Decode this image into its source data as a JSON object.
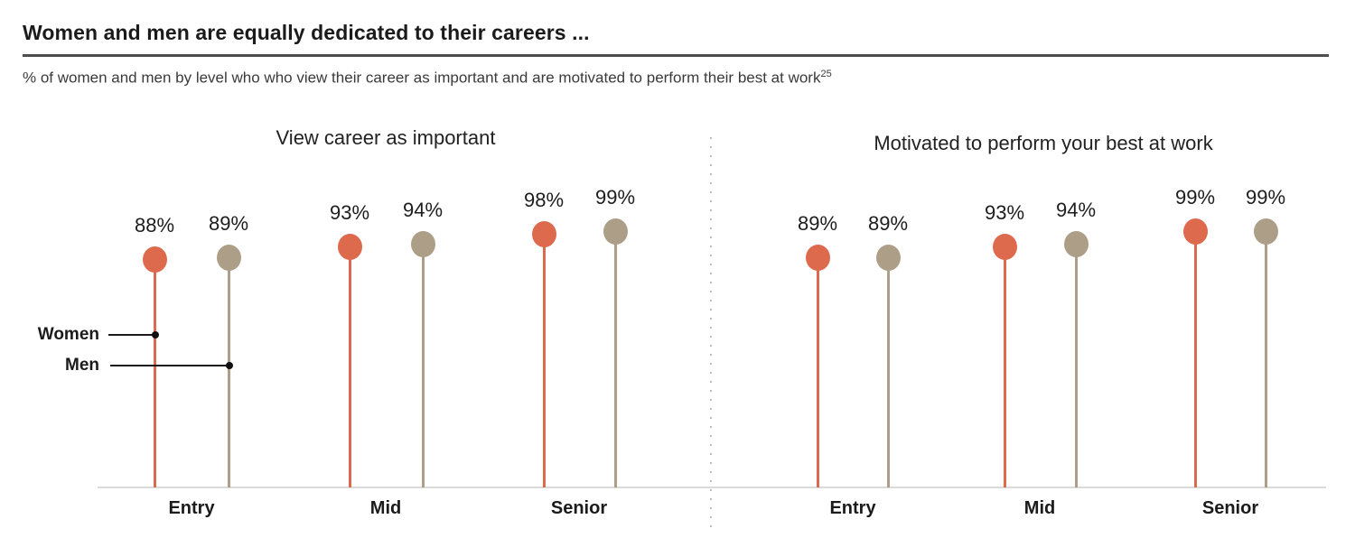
{
  "header": {
    "title": "Women and men are equally dedicated to their careers ...",
    "subtitle": "% of women and men by level who who view their career as important and are motivated to perform their best at work",
    "footnote_marker": "25"
  },
  "legend": {
    "women_label": "Women",
    "men_label": "Men"
  },
  "colors": {
    "women": "#DE6A4D",
    "men": "#AC9E87",
    "axis_line": "#DADADA",
    "divider_dots": "#BDBDBD",
    "title_rule": "#4D4D4D",
    "text": "#1B1B1B"
  },
  "chart_data": [
    {
      "type": "lollipop",
      "title": "View career as important",
      "categories": [
        "Entry",
        "Mid",
        "Senior"
      ],
      "series": [
        {
          "name": "Women",
          "values": [
            88,
            93,
            98
          ]
        },
        {
          "name": "Men",
          "values": [
            89,
            94,
            99
          ]
        }
      ],
      "unit": "%",
      "ylim": [
        0,
        100
      ],
      "legend_position": "left-of-entry-sticks",
      "grid": false
    },
    {
      "type": "lollipop",
      "title": "Motivated to perform your best at work",
      "categories": [
        "Entry",
        "Mid",
        "Senior"
      ],
      "series": [
        {
          "name": "Women",
          "values": [
            89,
            93,
            99
          ]
        },
        {
          "name": "Men",
          "values": [
            89,
            94,
            99
          ]
        }
      ],
      "unit": "%",
      "ylim": [
        0,
        100
      ],
      "legend_position": "none",
      "grid": false
    }
  ]
}
